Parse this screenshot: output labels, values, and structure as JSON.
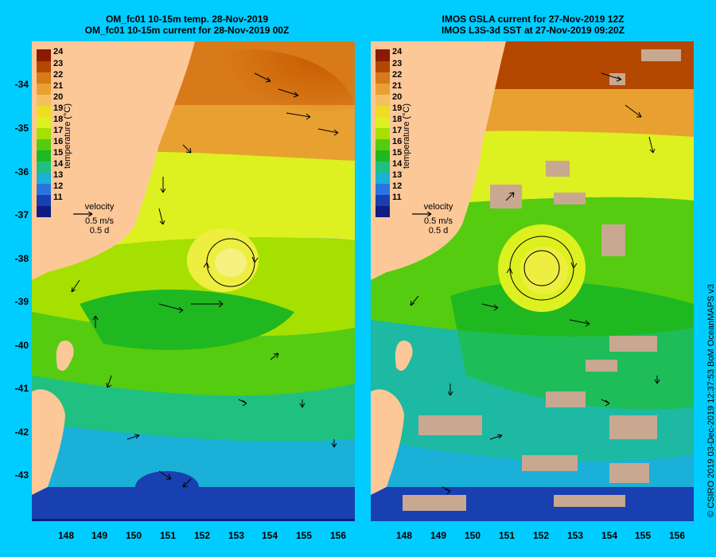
{
  "left_panel": {
    "title_line1": "OM_fc01 10-15m temp. 28-Nov-2019",
    "title_line2": "OM_fc01 10-15m current for 28-Nov-2019 00Z"
  },
  "right_panel": {
    "title_line1": "IMOS GSLA current for 27-Nov-2019 12Z",
    "title_line2": "IMOS L3S-3d SST at 27-Nov-2019 09:20Z"
  },
  "colorbar": {
    "title": "temperature (°C)",
    "ticks": [
      "24",
      "23",
      "22",
      "21",
      "20",
      "19",
      "18",
      "17",
      "16",
      "15",
      "14",
      "13",
      "12",
      "11"
    ],
    "colors": [
      "#8a1a00",
      "#b34700",
      "#d87a1a",
      "#e8a030",
      "#f5c060",
      "#eedd22",
      "#ddf020",
      "#a6e000",
      "#55cc10",
      "#20b820",
      "#20c080",
      "#1ab0d8",
      "#2a74e0",
      "#1840b0",
      "#101c80"
    ]
  },
  "velocity_legend": {
    "label": "velocity",
    "speed": "0.5 m/s",
    "scale": "0.5 d"
  },
  "axes": {
    "lat_labels": [
      "-34",
      "-35",
      "-36",
      "-37",
      "-38",
      "-39",
      "-40",
      "-41",
      "-42",
      "-43"
    ],
    "lon_labels": [
      "148",
      "149",
      "150",
      "151",
      "152",
      "153",
      "154",
      "155",
      "156"
    ]
  },
  "credit": "© CSIRO 2019  03-Dec-2019 12:37:53 BoM OceanMAPS v3",
  "colors": {
    "background": "#00ccff",
    "land": "#fcc898",
    "cloud": "#c8a890"
  }
}
